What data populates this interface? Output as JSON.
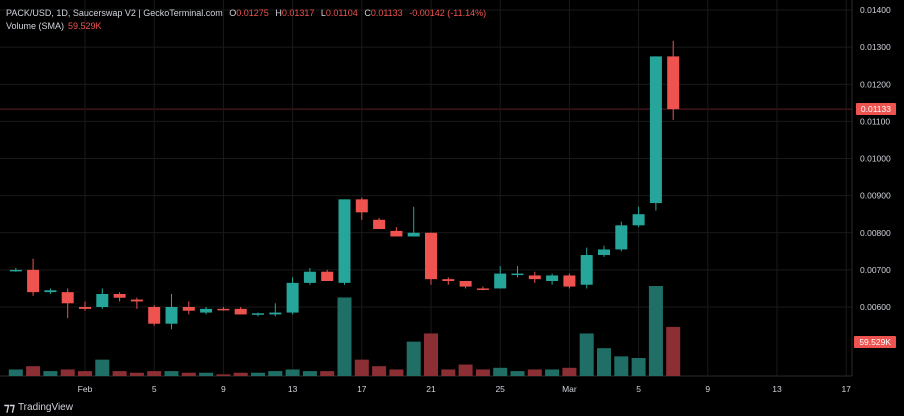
{
  "header": {
    "symbol": "PACK/USD, 1D, Saucerswap V2 | GeckoTerminal.com",
    "o_label": "O",
    "o_value": "0.01275",
    "h_label": "H",
    "h_value": "0.01317",
    "l_label": "L",
    "l_value": "0.01104",
    "c_label": "C",
    "c_value": "0.01133",
    "change": "-0.00142 (-11.14%)"
  },
  "volume_legend": {
    "label": "Volume (SMA)",
    "value": "59.529K"
  },
  "price_tag": "0.01133",
  "volume_tag": "59.529K",
  "branding": "TradingView",
  "colors": {
    "up": "#26a69a",
    "down": "#ef5350",
    "vol_up": "#1f6f66",
    "vol_down": "#8b2f35",
    "grid": "#1a1a1a",
    "text": "#d1d4dc"
  },
  "chart_data": {
    "type": "candlestick",
    "yticks": [
      "0.01400",
      "0.01300",
      "0.01200",
      "0.01100",
      "0.01000",
      "0.00900",
      "0.00800",
      "0.00700",
      "0.00600"
    ],
    "ylim": [
      0.00525,
      0.01415
    ],
    "xticks": [
      {
        "label": "Feb",
        "day": 0
      },
      {
        "label": "5",
        "day": 4
      },
      {
        "label": "9",
        "day": 8
      },
      {
        "label": "13",
        "day": 12
      },
      {
        "label": "17",
        "day": 16
      },
      {
        "label": "21",
        "day": 20
      },
      {
        "label": "25",
        "day": 24
      },
      {
        "label": "Mar",
        "day": 28
      },
      {
        "label": "5",
        "day": 32
      },
      {
        "label": "9",
        "day": 36
      },
      {
        "label": "13",
        "day": 40
      },
      {
        "label": "17",
        "day": 44
      }
    ],
    "candles": [
      {
        "day": -4,
        "o": 0.007,
        "h": 0.00705,
        "l": 0.00695,
        "c": 0.007,
        "v": 0.4
      },
      {
        "day": -3,
        "o": 0.007,
        "h": 0.0073,
        "l": 0.0063,
        "c": 0.0064,
        "v": 0.6
      },
      {
        "day": -2,
        "o": 0.0064,
        "h": 0.0065,
        "l": 0.00635,
        "c": 0.00645,
        "v": 0.3
      },
      {
        "day": -1,
        "o": 0.0064,
        "h": 0.0065,
        "l": 0.0057,
        "c": 0.0061,
        "v": 0.4
      },
      {
        "day": 0,
        "o": 0.006,
        "h": 0.00615,
        "l": 0.0059,
        "c": 0.00595,
        "v": 0.3
      },
      {
        "day": 1,
        "o": 0.006,
        "h": 0.0065,
        "l": 0.00595,
        "c": 0.00635,
        "v": 1.0
      },
      {
        "day": 2,
        "o": 0.00635,
        "h": 0.0064,
        "l": 0.00615,
        "c": 0.00625,
        "v": 0.3
      },
      {
        "day": 3,
        "o": 0.0062,
        "h": 0.00625,
        "l": 0.00595,
        "c": 0.00615,
        "v": 0.2
      },
      {
        "day": 4,
        "o": 0.006,
        "h": 0.00605,
        "l": 0.0055,
        "c": 0.00555,
        "v": 0.3
      },
      {
        "day": 5,
        "o": 0.00555,
        "h": 0.00635,
        "l": 0.0054,
        "c": 0.006,
        "v": 0.3
      },
      {
        "day": 6,
        "o": 0.006,
        "h": 0.00615,
        "l": 0.0058,
        "c": 0.0059,
        "v": 0.2
      },
      {
        "day": 7,
        "o": 0.00585,
        "h": 0.006,
        "l": 0.0058,
        "c": 0.00595,
        "v": 0.2
      },
      {
        "day": 8,
        "o": 0.00595,
        "h": 0.006,
        "l": 0.0059,
        "c": 0.00592,
        "v": 0.1
      },
      {
        "day": 9,
        "o": 0.00595,
        "h": 0.006,
        "l": 0.0058,
        "c": 0.0058,
        "v": 0.2
      },
      {
        "day": 10,
        "o": 0.0058,
        "h": 0.00585,
        "l": 0.00575,
        "c": 0.00583,
        "v": 0.2
      },
      {
        "day": 11,
        "o": 0.0058,
        "h": 0.0061,
        "l": 0.00575,
        "c": 0.00585,
        "v": 0.3
      },
      {
        "day": 12,
        "o": 0.00585,
        "h": 0.0068,
        "l": 0.0058,
        "c": 0.00665,
        "v": 0.4
      },
      {
        "day": 13,
        "o": 0.00665,
        "h": 0.00705,
        "l": 0.0066,
        "c": 0.00695,
        "v": 0.3
      },
      {
        "day": 14,
        "o": 0.00695,
        "h": 0.007,
        "l": 0.0067,
        "c": 0.0067,
        "v": 0.3
      },
      {
        "day": 15,
        "o": 0.00665,
        "h": 0.0089,
        "l": 0.0066,
        "c": 0.0089,
        "v": 4.8
      },
      {
        "day": 16,
        "o": 0.0089,
        "h": 0.00895,
        "l": 0.00835,
        "c": 0.00855,
        "v": 1.0
      },
      {
        "day": 17,
        "o": 0.00835,
        "h": 0.0084,
        "l": 0.0081,
        "c": 0.0081,
        "v": 0.6
      },
      {
        "day": 18,
        "o": 0.00805,
        "h": 0.00815,
        "l": 0.0079,
        "c": 0.0079,
        "v": 0.4
      },
      {
        "day": 19,
        "o": 0.0079,
        "h": 0.0087,
        "l": 0.0079,
        "c": 0.008,
        "v": 2.1
      },
      {
        "day": 20,
        "o": 0.008,
        "h": 0.008,
        "l": 0.0066,
        "c": 0.00675,
        "v": 2.6
      },
      {
        "day": 21,
        "o": 0.00675,
        "h": 0.0068,
        "l": 0.0066,
        "c": 0.0067,
        "v": 0.4
      },
      {
        "day": 22,
        "o": 0.0067,
        "h": 0.0067,
        "l": 0.0065,
        "c": 0.00655,
        "v": 0.7
      },
      {
        "day": 23,
        "o": 0.0065,
        "h": 0.00655,
        "l": 0.00645,
        "c": 0.00648,
        "v": 0.4
      },
      {
        "day": 24,
        "o": 0.0065,
        "h": 0.0071,
        "l": 0.0065,
        "c": 0.0069,
        "v": 0.5
      },
      {
        "day": 25,
        "o": 0.0069,
        "h": 0.0071,
        "l": 0.0068,
        "c": 0.0069,
        "v": 0.3
      },
      {
        "day": 26,
        "o": 0.00685,
        "h": 0.00695,
        "l": 0.00665,
        "c": 0.00675,
        "v": 0.4
      },
      {
        "day": 27,
        "o": 0.0067,
        "h": 0.0069,
        "l": 0.0066,
        "c": 0.00685,
        "v": 0.4
      },
      {
        "day": 28,
        "o": 0.00685,
        "h": 0.0069,
        "l": 0.0065,
        "c": 0.00655,
        "v": 0.5
      },
      {
        "day": 29,
        "o": 0.0066,
        "h": 0.0076,
        "l": 0.0065,
        "c": 0.0074,
        "v": 2.6
      },
      {
        "day": 30,
        "o": 0.0074,
        "h": 0.00765,
        "l": 0.00735,
        "c": 0.00755,
        "v": 1.7
      },
      {
        "day": 31,
        "o": 0.00755,
        "h": 0.0083,
        "l": 0.0075,
        "c": 0.0082,
        "v": 1.2
      },
      {
        "day": 32,
        "o": 0.0082,
        "h": 0.0087,
        "l": 0.00815,
        "c": 0.0085,
        "v": 1.1
      },
      {
        "day": 33,
        "o": 0.0088,
        "h": 0.01275,
        "l": 0.0086,
        "c": 0.01275,
        "v": 5.5
      },
      {
        "day": 34,
        "o": 0.01275,
        "h": 0.01317,
        "l": 0.01104,
        "c": 0.01133,
        "v": 3.0
      }
    ]
  }
}
